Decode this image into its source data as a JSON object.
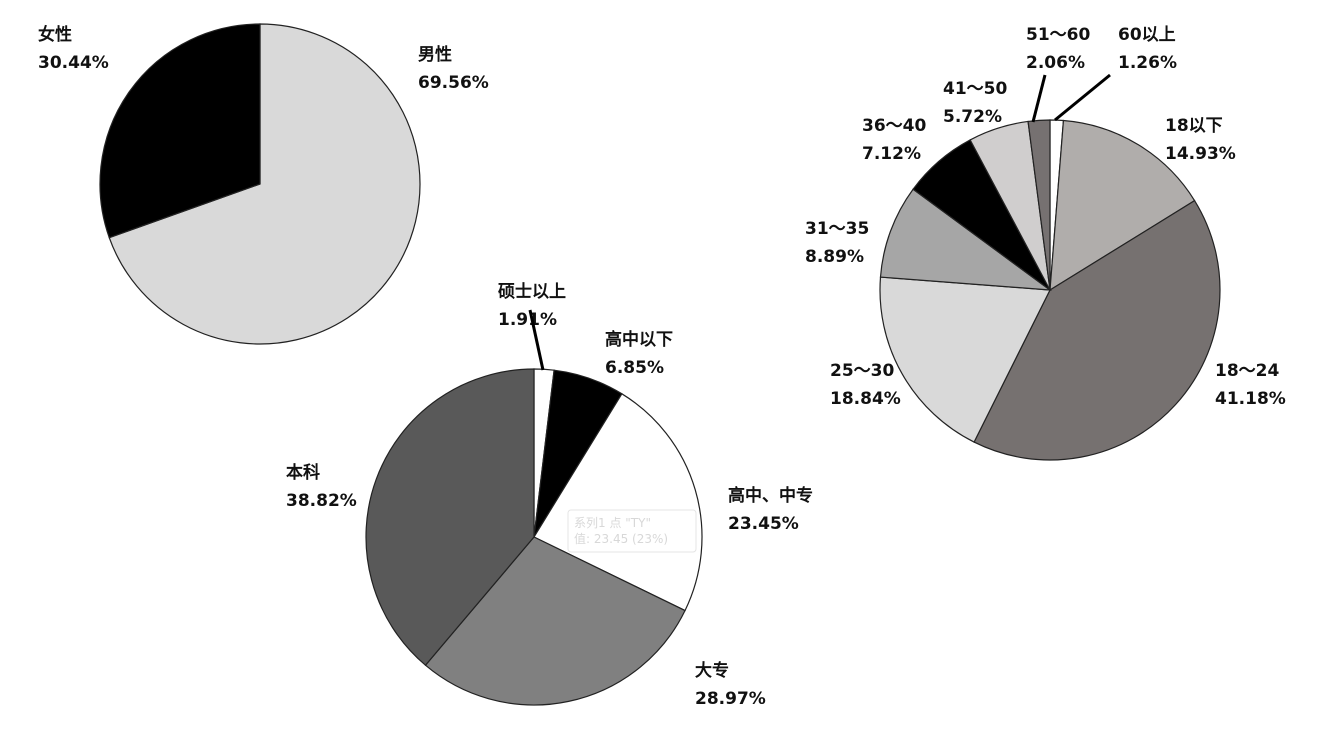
{
  "chart_data": [
    {
      "type": "pie",
      "start": "top-clockwise",
      "slices": [
        {
          "label": "男性",
          "value": 69.56,
          "text": "69.56%",
          "color": "#d9d9d9"
        },
        {
          "label": "女性",
          "value": 30.44,
          "text": "30.44%",
          "color": "#000000"
        }
      ]
    },
    {
      "type": "pie",
      "start": "top-clockwise",
      "slices": [
        {
          "label": "硕士以上",
          "value": 1.91,
          "text": "1.91%",
          "color": "#ffffff"
        },
        {
          "label": "高中以下",
          "value": 6.85,
          "text": "6.85%",
          "color": "#000000"
        },
        {
          "label": "高中、中专",
          "value": 23.45,
          "text": "23.45%",
          "color": "#ffffff"
        },
        {
          "label": "大专",
          "value": 28.97,
          "text": "28.97%",
          "color": "#808080"
        },
        {
          "label": "本科",
          "value": 38.82,
          "text": "38.82%",
          "color": "#595959"
        }
      ],
      "tooltip": [
        "系列1 点 \"TY\"",
        "值: 23.45 (23%)"
      ]
    },
    {
      "type": "pie",
      "start": "top-clockwise",
      "slices": [
        {
          "label": "60以上",
          "value": 1.26,
          "text": "1.26%",
          "color": "#ffffff"
        },
        {
          "label": "18以下",
          "value": 14.93,
          "text": "14.93%",
          "color": "#b0adab"
        },
        {
          "label": "18～24",
          "value": 41.18,
          "text": "41.18%",
          "color": "#767170"
        },
        {
          "label": "25～30",
          "value": 18.84,
          "text": "18.84%",
          "color": "#d9d9d9"
        },
        {
          "label": "31～35",
          "value": 8.89,
          "text": "8.89%",
          "color": "#a6a6a6"
        },
        {
          "label": "36～40",
          "value": 7.12,
          "text": "7.12%",
          "color": "#000000"
        },
        {
          "label": "41～50",
          "value": 5.72,
          "text": "5.72%",
          "color": "#d0cece"
        },
        {
          "label": "51～60",
          "value": 2.06,
          "text": "2.06%",
          "color": "#767171"
        }
      ]
    }
  ]
}
